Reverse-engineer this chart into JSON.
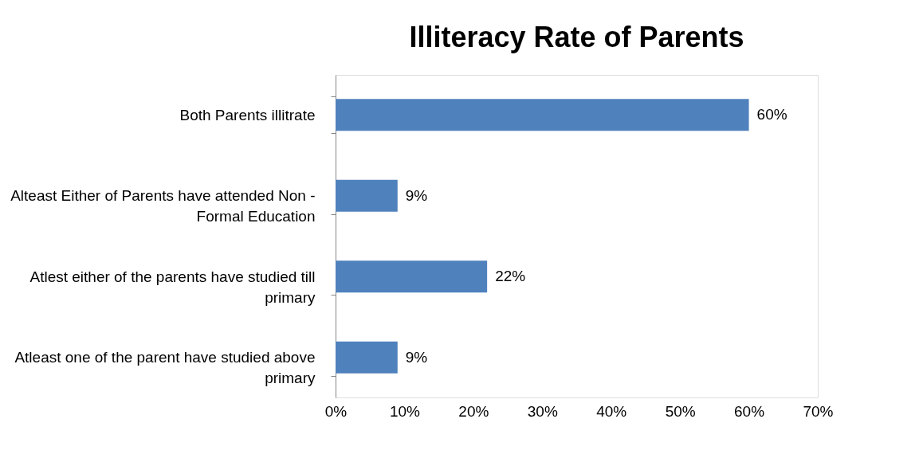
{
  "chart_data": {
    "type": "bar",
    "orientation": "horizontal",
    "title": "Illiteracy Rate of Parents",
    "categories": [
      "Both Parents illitrate",
      "Alteast Either of Parents have attended Non - Formal Education",
      "Atlest either of the parents have studied till primary",
      "Atleast one of the parent have studied above primary"
    ],
    "values": [
      60,
      9,
      22,
      9
    ],
    "value_labels": [
      "60%",
      "9%",
      "22%",
      "9%"
    ],
    "color": "#4f81bd",
    "xlim": [
      0,
      70
    ],
    "xticks": [
      {
        "value": 0,
        "label": "0%"
      },
      {
        "value": 10,
        "label": "10%"
      },
      {
        "value": 20,
        "label": "20%"
      },
      {
        "value": 30,
        "label": "30%"
      },
      {
        "value": 40,
        "label": "40%"
      },
      {
        "value": 50,
        "label": "50%"
      },
      {
        "value": 60,
        "label": "60%"
      },
      {
        "value": 70,
        "label": "70%"
      }
    ],
    "grid": false
  }
}
